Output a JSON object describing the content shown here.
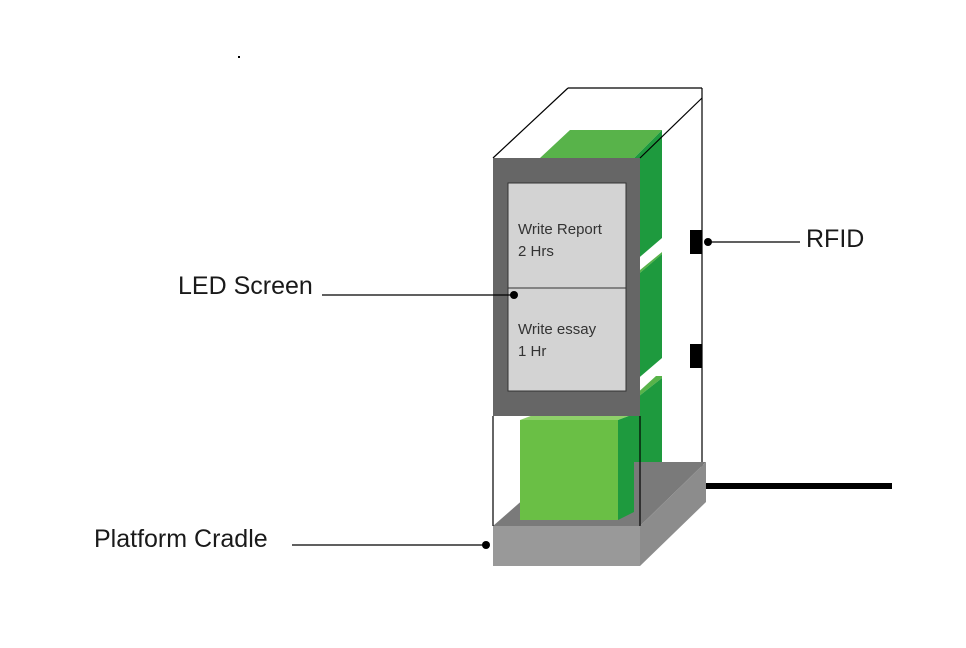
{
  "labels": {
    "led_screen": "LED Screen",
    "rfid": "RFID",
    "platform_cradle": "Platform Cradle"
  },
  "screen": {
    "tasks": [
      {
        "name": "Write Report",
        "duration": "2 Hrs"
      },
      {
        "name": "Write essay",
        "duration": "1 Hr"
      }
    ]
  },
  "colors": {
    "block_front": "#6abf45",
    "block_side": "#1e9a3e",
    "screen_frame": "#666666",
    "screen_panel": "#d3d3d3",
    "platform_front": "#999999",
    "platform_top": "#7a7a7a",
    "platform_side": "#8c8c8c",
    "line": "#000000"
  }
}
